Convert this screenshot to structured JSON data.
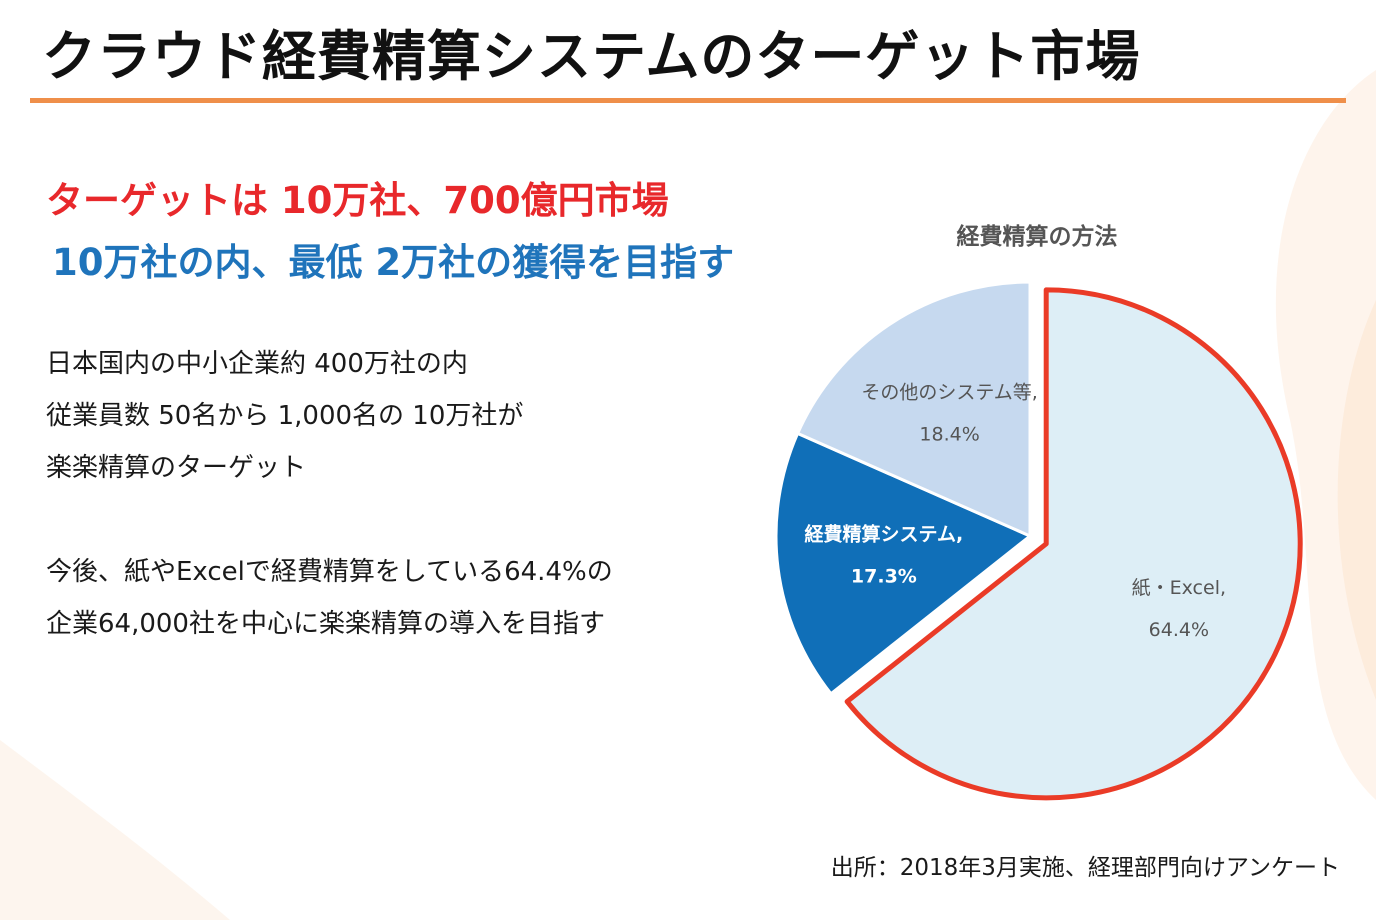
{
  "page": {
    "title": "クラウド経費精算システムのターゲット市場",
    "headline": "ターゲットは 10万社、700億円市場",
    "subheadline": "10万社の内、最低 2万社の獲得を目指す",
    "paragraph1": [
      "日本国内の中小企業約 400万社の内",
      "従業員数 50名から 1,000名の 10万社が",
      "楽楽精算のターゲット"
    ],
    "paragraph2": [
      "今後、紙やExcelで経費精算をしている64.4%の",
      "企業64,000社を中心に楽楽精算の導入を目指す"
    ],
    "source": "出所：2018年3月実施、経理部門向けアンケート"
  },
  "colors": {
    "title_rule": "#ef8f4a",
    "headline": "#e8282b",
    "subheadline": "#1f74bb",
    "highlight_border": "#ea3b27"
  },
  "chart_data": {
    "type": "pie",
    "title": "経費精算の方法",
    "slices": [
      {
        "label": "紙・Excel",
        "value": 64.4,
        "display": "64.4%",
        "color": "#ddeef6",
        "highlighted": true
      },
      {
        "label": "経費精算システム",
        "value": 17.3,
        "display": "17.3%",
        "color": "#106fb8",
        "highlighted": false
      },
      {
        "label": "その他のシステム等",
        "value": 18.4,
        "display": "18.4%",
        "color": "#c6d9ef",
        "highlighted": false
      }
    ],
    "legend": "none"
  }
}
